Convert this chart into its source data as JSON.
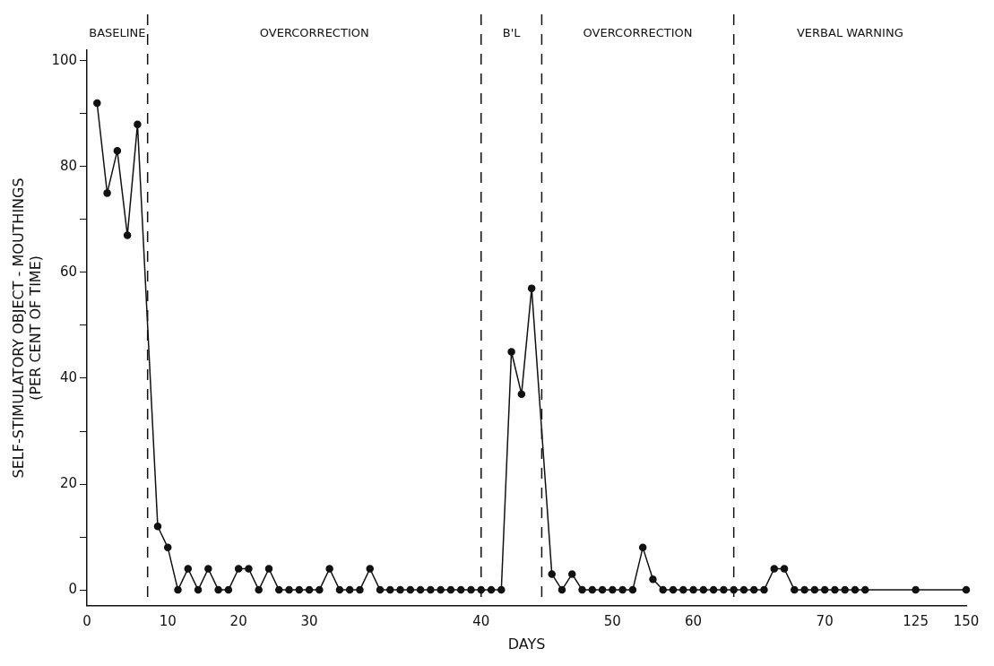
{
  "chart_data": {
    "type": "line",
    "xlabel": "DAYS",
    "ylabel": "SELF-STIMULATORY OBJECT - MOUTHINGS\n(PER CENT OF TIME)",
    "categories": [
      "0",
      null,
      null,
      null,
      null,
      null,
      null,
      null,
      "10",
      null,
      null,
      null,
      null,
      null,
      null,
      "20",
      null,
      null,
      null,
      null,
      null,
      null,
      "30",
      null,
      null,
      null,
      null,
      null,
      null,
      null,
      null,
      null,
      null,
      null,
      null,
      null,
      null,
      null,
      null,
      "40",
      null,
      null,
      null,
      null,
      null,
      null,
      null,
      null,
      null,
      null,
      null,
      null,
      "50",
      null,
      null,
      null,
      null,
      null,
      null,
      null,
      "60",
      null,
      null,
      null,
      null,
      null,
      null,
      null,
      null,
      null,
      null,
      null,
      null,
      "70",
      null,
      null,
      null,
      null,
      null,
      null,
      null,
      null,
      "125",
      null,
      null,
      null,
      null,
      "150"
    ],
    "series": [
      {
        "color": "#111111",
        "values": [
          null,
          92,
          75,
          83,
          67,
          88,
          null,
          12,
          8,
          0,
          4,
          0,
          4,
          0,
          0,
          4,
          4,
          0,
          4,
          0,
          0,
          0,
          0,
          0,
          4,
          0,
          0,
          0,
          4,
          0,
          0,
          0,
          0,
          0,
          0,
          0,
          0,
          0,
          0,
          0,
          0,
          0,
          45,
          37,
          57,
          null,
          3,
          0,
          3,
          0,
          0,
          0,
          0,
          0,
          0,
          8,
          2,
          0,
          0,
          0,
          0,
          0,
          0,
          0,
          0,
          0,
          0,
          0,
          4,
          4,
          0,
          0,
          0,
          0,
          0,
          0,
          0,
          0,
          null,
          null,
          null,
          null,
          0,
          null,
          null,
          null,
          null,
          0
        ]
      }
    ],
    "ylim": [
      -3,
      102
    ],
    "yticks": [
      0,
      {
        "value": 10,
        "label": null
      },
      20,
      {
        "value": 30,
        "label": null
      },
      40,
      {
        "value": 50,
        "label": null
      },
      60,
      {
        "value": 70,
        "label": null
      },
      80,
      {
        "value": 90,
        "label": null
      },
      100
    ],
    "annotations": [
      "BASELINE",
      "OVERCORRECTION",
      "B'L",
      "OVERCORRECTION",
      "VERBAL WARNING"
    ],
    "marker": "circle",
    "line_style": "solid",
    "grid": false,
    "legend": false
  }
}
